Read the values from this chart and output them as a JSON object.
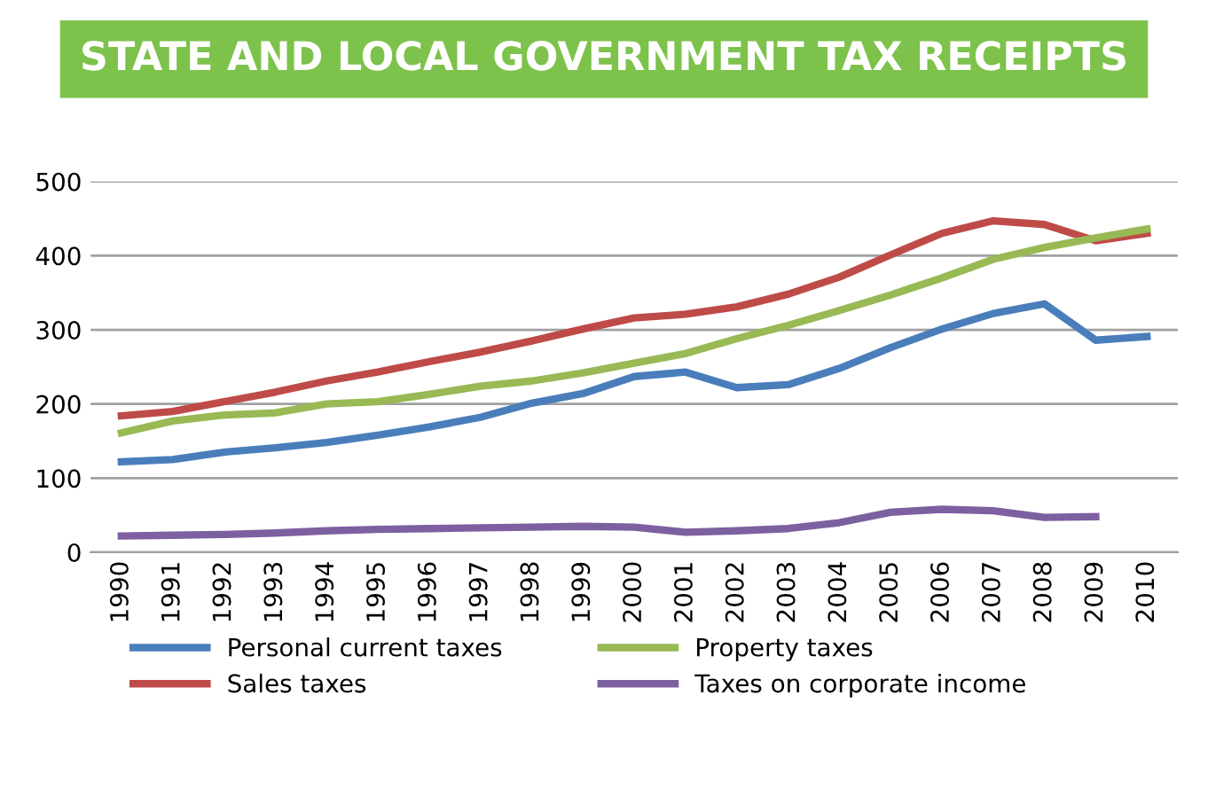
{
  "chart_data": {
    "type": "line",
    "title": "STATE AND LOCAL GOVERNMENT TAX RECEIPTS",
    "categories": [
      "1990",
      "1991",
      "1992",
      "1993",
      "1994",
      "1995",
      "1996",
      "1997",
      "1998",
      "1999",
      "2000",
      "2001",
      "2002",
      "2003",
      "2004",
      "2005",
      "2006",
      "2007",
      "2008",
      "2009",
      "2010"
    ],
    "series": [
      {
        "name": "Personal current taxes",
        "color": "#4a7ebb",
        "values": [
          122,
          125,
          135,
          141,
          148,
          158,
          169,
          182,
          201,
          214,
          237,
          243,
          222,
          226,
          248,
          276,
          301,
          322,
          335,
          286,
          291
        ]
      },
      {
        "name": "Sales taxes",
        "color": "#be4b48",
        "values": [
          184,
          190,
          203,
          216,
          231,
          243,
          257,
          270,
          285,
          301,
          316,
          321,
          331,
          348,
          371,
          401,
          430,
          447,
          442,
          420,
          430
        ]
      },
      {
        "name": "Property taxes",
        "color": "#98b954",
        "values": [
          161,
          177,
          185,
          188,
          200,
          203,
          213,
          224,
          231,
          242,
          255,
          268,
          288,
          306,
          326,
          347,
          370,
          395,
          411,
          424,
          436
        ]
      },
      {
        "name": "Taxes on corporate income",
        "color": "#7d60a0",
        "values": [
          22,
          23,
          24,
          26,
          29,
          31,
          32,
          33,
          34,
          35,
          34,
          27,
          29,
          32,
          40,
          54,
          58,
          56,
          47,
          48,
          null
        ]
      }
    ],
    "ylim": [
      0,
      500
    ],
    "yticks": [
      0,
      100,
      200,
      300,
      400,
      500
    ],
    "grid": "y",
    "legend": "bottom",
    "marker": "none",
    "line_style": "solid"
  }
}
